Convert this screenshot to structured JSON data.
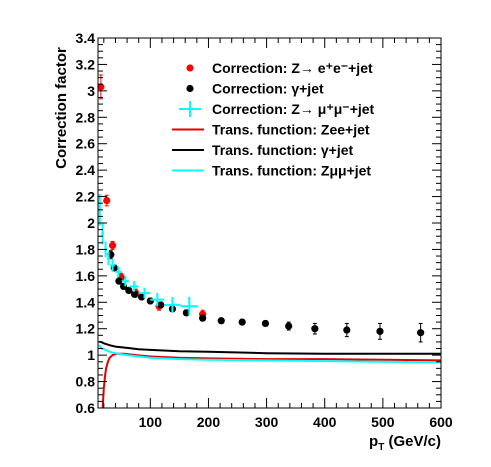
{
  "chart_data": {
    "type": "scatter",
    "title": "",
    "xlabel": "p",
    "xlabel_sub": "T",
    "xlabel_unit": " (GeV/c)",
    "ylabel": "Correction factor",
    "xlim": [
      10,
      600
    ],
    "ylim": [
      0.6,
      3.4
    ],
    "x_ticks": [
      100,
      200,
      300,
      400,
      500,
      600
    ],
    "y_ticks": [
      0.6,
      0.8,
      1,
      1.2,
      1.4,
      1.6,
      1.8,
      2,
      2.2,
      2.4,
      2.6,
      2.8,
      3,
      3.2,
      3.4
    ],
    "grid": false,
    "legend_position": "top-right",
    "series": [
      {
        "name": "Correction: Z→ e⁺e⁻+jet",
        "kind": "points",
        "color": "#ff0000",
        "points": [
          {
            "x": 15,
            "y": 3.03,
            "err": 0.09
          },
          {
            "x": 25,
            "y": 2.17,
            "err": 0.04
          },
          {
            "x": 35,
            "y": 1.83,
            "err": 0.03
          },
          {
            "x": 50,
            "y": 1.59,
            "err": 0.03
          },
          {
            "x": 75,
            "y": 1.47,
            "err": 0.03
          },
          {
            "x": 115,
            "y": 1.37,
            "err": 0.03
          },
          {
            "x": 190,
            "y": 1.31,
            "err": 0.03
          }
        ]
      },
      {
        "name": "Correction: γ+jet",
        "kind": "points",
        "color": "#000000",
        "points": [
          {
            "x": 32,
            "y": 1.76,
            "err": 0.03
          },
          {
            "x": 38,
            "y": 1.66,
            "err": 0.02
          },
          {
            "x": 46,
            "y": 1.56,
            "err": 0.02
          },
          {
            "x": 54,
            "y": 1.52,
            "err": 0.02
          },
          {
            "x": 63,
            "y": 1.49,
            "err": 0.02
          },
          {
            "x": 73,
            "y": 1.46,
            "err": 0.02
          },
          {
            "x": 85,
            "y": 1.44,
            "err": 0.02
          },
          {
            "x": 100,
            "y": 1.41,
            "err": 0.02
          },
          {
            "x": 118,
            "y": 1.38,
            "err": 0.02
          },
          {
            "x": 138,
            "y": 1.35,
            "err": 0.02
          },
          {
            "x": 162,
            "y": 1.32,
            "err": 0.02
          },
          {
            "x": 190,
            "y": 1.28,
            "err": 0.02
          },
          {
            "x": 222,
            "y": 1.26,
            "err": 0.02
          },
          {
            "x": 258,
            "y": 1.25,
            "err": 0.02
          },
          {
            "x": 298,
            "y": 1.24,
            "err": 0.02
          },
          {
            "x": 338,
            "y": 1.22,
            "err": 0.03
          },
          {
            "x": 383,
            "y": 1.2,
            "err": 0.04
          },
          {
            "x": 438,
            "y": 1.19,
            "err": 0.05
          },
          {
            "x": 495,
            "y": 1.18,
            "err": 0.06
          },
          {
            "x": 565,
            "y": 1.17,
            "err": 0.07
          }
        ]
      },
      {
        "name": "Correction: Z→ μ⁺μ⁻+jet",
        "kind": "crosses",
        "color": "#00ffff",
        "points": [
          {
            "x": 13,
            "y": 2.1,
            "xerr": 3,
            "err": 0.12
          },
          {
            "x": 18,
            "y": 1.92,
            "xerr": 2.5,
            "err": 0.08
          },
          {
            "x": 23,
            "y": 1.8,
            "xerr": 2.5,
            "err": 0.06
          },
          {
            "x": 28,
            "y": 1.73,
            "xerr": 2.5,
            "err": 0.05
          },
          {
            "x": 35,
            "y": 1.68,
            "xerr": 4,
            "err": 0.05
          },
          {
            "x": 45,
            "y": 1.63,
            "xerr": 5,
            "err": 0.04
          },
          {
            "x": 57,
            "y": 1.56,
            "xerr": 6,
            "err": 0.04
          },
          {
            "x": 72,
            "y": 1.52,
            "xerr": 8,
            "err": 0.04
          },
          {
            "x": 90,
            "y": 1.47,
            "xerr": 10,
            "err": 0.04
          },
          {
            "x": 112,
            "y": 1.42,
            "xerr": 12,
            "err": 0.05
          },
          {
            "x": 138,
            "y": 1.38,
            "xerr": 14,
            "err": 0.06
          },
          {
            "x": 167,
            "y": 1.37,
            "xerr": 15,
            "err": 0.07
          }
        ]
      },
      {
        "name": "Trans. function: Zee+jet",
        "kind": "line",
        "color": "#e00000",
        "x": [
          18,
          19,
          20,
          22,
          24,
          27,
          30,
          35,
          42,
          55,
          75,
          100,
          150,
          200,
          300,
          400,
          500,
          600
        ],
        "y": [
          0.6,
          0.67,
          0.75,
          0.84,
          0.9,
          0.95,
          0.98,
          1.0,
          1.01,
          1.01,
          1.0,
          0.99,
          0.98,
          0.975,
          0.97,
          0.97,
          0.965,
          0.96
        ]
      },
      {
        "name": "Trans. function: γ+jet",
        "kind": "line",
        "color": "#000000",
        "x": [
          12,
          15,
          20,
          30,
          40,
          60,
          80,
          100,
          150,
          200,
          300,
          400,
          500,
          600
        ],
        "y": [
          1.1,
          1.1,
          1.09,
          1.075,
          1.065,
          1.055,
          1.045,
          1.04,
          1.03,
          1.025,
          1.015,
          1.01,
          1.01,
          1.01
        ]
      },
      {
        "name": "Trans. function: Zμμ+jet",
        "kind": "line",
        "color": "#00ffff",
        "x": [
          12,
          14,
          17,
          20,
          25,
          30,
          40,
          60,
          80,
          100,
          150,
          200,
          300,
          400,
          500,
          600
        ],
        "y": [
          1.08,
          1.06,
          1.05,
          1.045,
          1.035,
          1.025,
          1.015,
          1.0,
          0.99,
          0.98,
          0.97,
          0.965,
          0.96,
          0.955,
          0.95,
          0.945
        ]
      }
    ]
  }
}
